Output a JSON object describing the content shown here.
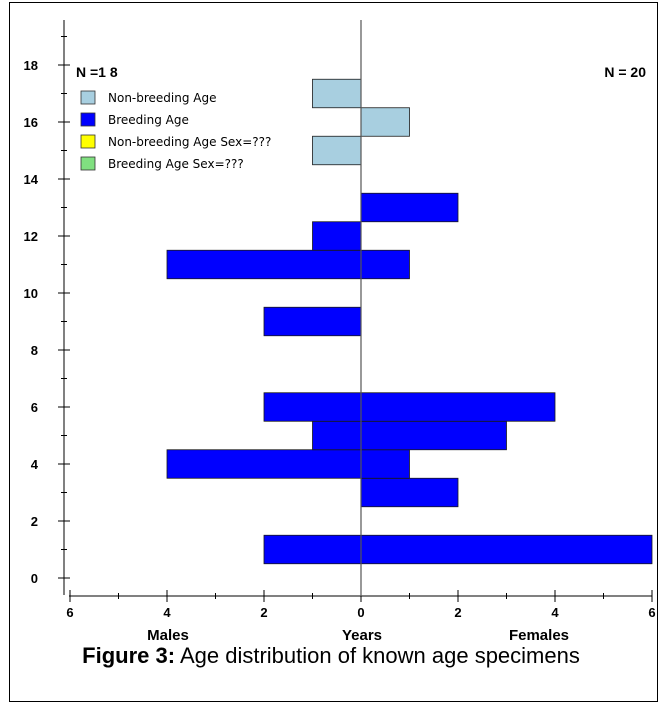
{
  "chart_data": {
    "type": "bar",
    "orientation": "horizontal-population-pyramid",
    "title": "",
    "left_group_label": "Males",
    "center_label": "Years",
    "right_group_label": "Females",
    "left_n_label": "N =1 8",
    "right_n_label": "N = 20",
    "x_ticks": [
      "6",
      "4",
      "2",
      "0",
      "2",
      "4",
      "6"
    ],
    "xlim": [
      -6,
      6
    ],
    "y_ticks": [
      "0",
      "2",
      "4",
      "6",
      "8",
      "10",
      "12",
      "14",
      "16",
      "18"
    ],
    "ylim": [
      -0.5,
      19.5
    ],
    "legend": [
      {
        "label": "Non-breeding Age",
        "color": "#a8cfe0"
      },
      {
        "label": "Breeding Age",
        "color": "#0000ff"
      },
      {
        "label": "Non-breeding Age Sex=???",
        "color": "#ffff00"
      },
      {
        "label": "Breeding Age Sex=???",
        "color": "#80e080"
      }
    ],
    "series": [
      {
        "name": "Non-breeding Age",
        "color": "#a8cfe0",
        "points": [
          {
            "age": 15,
            "males": 1,
            "females": 0
          },
          {
            "age": 16,
            "males": 0,
            "females": 1
          },
          {
            "age": 17,
            "males": 1,
            "females": 0
          }
        ]
      },
      {
        "name": "Breeding Age",
        "color": "#0000ff",
        "points": [
          {
            "age": 1,
            "males": 2,
            "females": 6
          },
          {
            "age": 3,
            "males": 0,
            "females": 2
          },
          {
            "age": 4,
            "males": 4,
            "females": 1
          },
          {
            "age": 5,
            "males": 1,
            "females": 3
          },
          {
            "age": 6,
            "males": 2,
            "females": 4
          },
          {
            "age": 9,
            "males": 2,
            "females": 0
          },
          {
            "age": 11,
            "males": 4,
            "females": 1
          },
          {
            "age": 12,
            "males": 1,
            "females": 0
          },
          {
            "age": 13,
            "males": 0,
            "females": 2
          }
        ]
      }
    ]
  },
  "caption": {
    "label": "Figure 3:",
    "text": " Age distribution of known age specimens"
  }
}
